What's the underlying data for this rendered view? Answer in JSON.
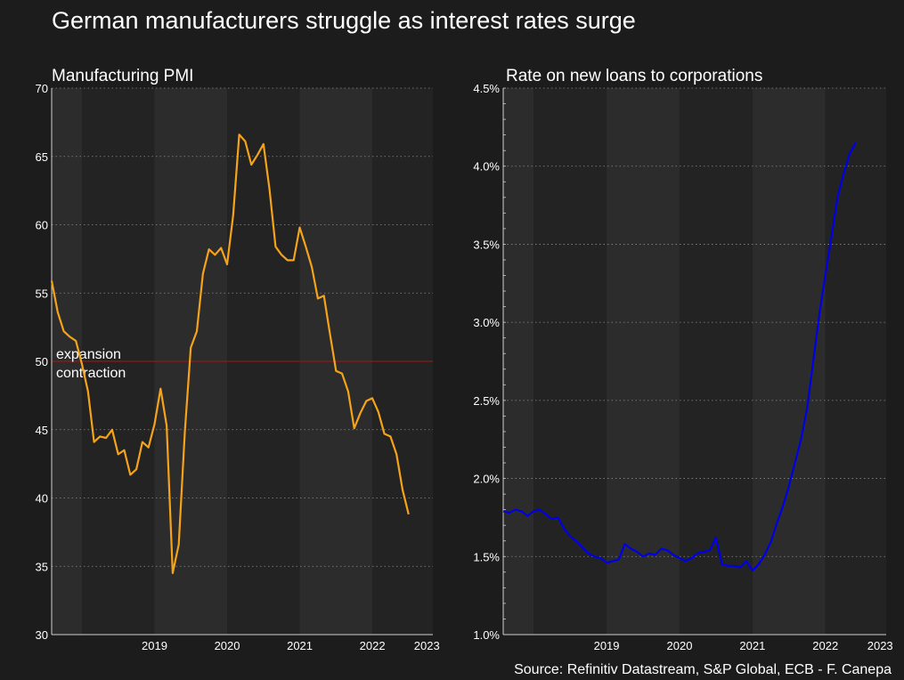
{
  "title": "German manufacturers struggle as interest rates surge",
  "source": "Source: Refinitiv Datastream, S&P Global, ECB - F. Canepa",
  "colors": {
    "background": "#1c1c1c",
    "band_light": "#2c2c2c",
    "band_dark": "#232323",
    "grid": "#8a8a8a",
    "pmi_line": "#f5a31a",
    "rate_line": "#0000e6",
    "threshold_line": "#8b1a1a"
  },
  "chart_data": [
    {
      "type": "line",
      "title": "Manufacturing PMI",
      "xlabel": "",
      "ylabel": "",
      "ylim": [
        30,
        70
      ],
      "yticks": [
        "30",
        "35",
        "40",
        "45",
        "50",
        "55",
        "60",
        "65",
        "70"
      ],
      "xlim": [
        2018.083,
        2023.333
      ],
      "xticks": [
        {
          "label": "2019",
          "value": 2019.5
        },
        {
          "label": "2020",
          "value": 2020.5
        },
        {
          "label": "2021",
          "value": 2021.5
        },
        {
          "label": "2022",
          "value": 2022.5
        },
        {
          "label": "2023",
          "value": 2023.25
        }
      ],
      "grid": true,
      "threshold": {
        "value": 50,
        "label_above": "expansion",
        "label_below": "contraction"
      },
      "x_start": 2018.083,
      "x_step": 0.08333,
      "series": [
        {
          "values": [
            55.9,
            53.6,
            52.2,
            51.8,
            51.5,
            49.8,
            47.8,
            44.1,
            44.5,
            44.4,
            45.0,
            43.2,
            43.5,
            41.7,
            42.1,
            44.1,
            43.7,
            45.4,
            48.0,
            45.3,
            34.5,
            36.6,
            44.8,
            51.0,
            52.2,
            56.4,
            58.2,
            57.8,
            58.3,
            57.1,
            60.7,
            66.6,
            66.1,
            64.4,
            65.1,
            65.9,
            62.6,
            58.4,
            57.8,
            57.4,
            57.4,
            59.8,
            58.4,
            56.9,
            54.6,
            54.8,
            52.0,
            49.3,
            49.1,
            47.8,
            45.1,
            46.2,
            47.1,
            47.3,
            46.3,
            44.7,
            44.5,
            43.2,
            40.6,
            38.8
          ]
        }
      ]
    },
    {
      "type": "line",
      "title": "Rate on new loans to corporations",
      "xlabel": "",
      "ylabel": "",
      "ylim": [
        1.0,
        4.5
      ],
      "yticks": [
        "1.0%",
        "1.5%",
        "2.0%",
        "2.5%",
        "3.0%",
        "3.5%",
        "4.0%",
        "4.5%"
      ],
      "xlim": [
        2018.083,
        2023.333
      ],
      "xticks": [
        {
          "label": "2019",
          "value": 2019.5
        },
        {
          "label": "2020",
          "value": 2020.5
        },
        {
          "label": "2021",
          "value": 2021.5
        },
        {
          "label": "2022",
          "value": 2022.5
        },
        {
          "label": "2023",
          "value": 2023.25
        }
      ],
      "grid": true,
      "x_start": 2018.083,
      "x_step": 0.08333,
      "series": [
        {
          "values": [
            1.79,
            1.78,
            1.8,
            1.79,
            1.76,
            1.79,
            1.8,
            1.77,
            1.74,
            1.75,
            1.68,
            1.63,
            1.6,
            1.56,
            1.52,
            1.5,
            1.49,
            1.46,
            1.47,
            1.48,
            1.58,
            1.55,
            1.53,
            1.5,
            1.52,
            1.51,
            1.55,
            1.54,
            1.51,
            1.49,
            1.47,
            1.49,
            1.52,
            1.53,
            1.54,
            1.62,
            1.45,
            1.44,
            1.44,
            1.43,
            1.47,
            1.41,
            1.45,
            1.51,
            1.59,
            1.71,
            1.82,
            1.95,
            2.1,
            2.25,
            2.45,
            2.75,
            3.05,
            3.3,
            3.55,
            3.8,
            3.95,
            4.08,
            4.15
          ]
        }
      ]
    }
  ]
}
